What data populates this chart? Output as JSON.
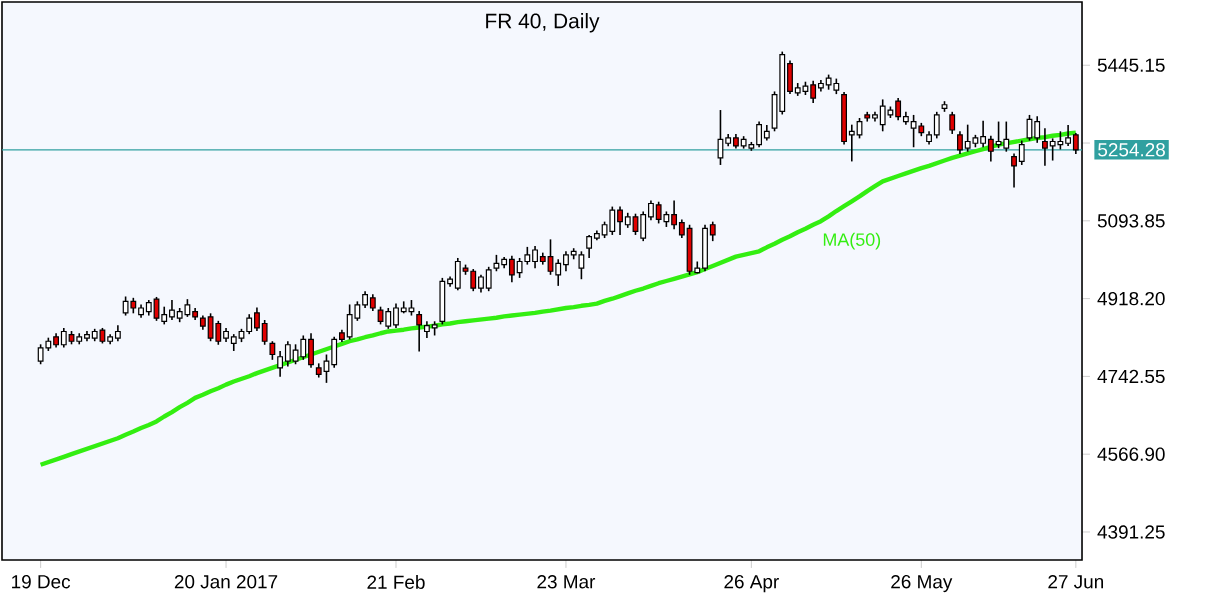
{
  "chart_data": {
    "type": "candlestick",
    "title": "FR 40, Daily",
    "colors": [
      "#ffffff",
      "#ffffff",
      "#e00000",
      "#ffffff",
      "#e00000",
      "#ffffff",
      "#ffffff",
      "#ffffff",
      "#e00000",
      "#ffffff",
      "#ffffff",
      "#ffffff",
      "#e00000",
      "#ffffff",
      "#ffffff",
      "#e00000",
      "#ffffff",
      "#ffffff",
      "#ffffff",
      "#ffffff",
      "#e00000",
      "#e00000",
      "#e00000",
      "#e00000",
      "#ffffff",
      "#ffffff",
      "#ffffff",
      "#ffffff",
      "#e00000",
      "#e00000",
      "#e00000",
      "#ffffff",
      "#ffffff",
      "#ffffff",
      "#ffffff",
      "#e00000",
      "#e00000",
      "#ffffff",
      "#ffffff",
      "#e00000",
      "#ffffff",
      "#ffffff",
      "#ffffff",
      "#e00000",
      "#e00000",
      "#ffffff",
      "#ffffff",
      "#ffffff",
      "#ffffff",
      "#e00000",
      "#ffffff",
      "#ffffff",
      "#ffffff",
      "#ffffff",
      "#ffffff",
      "#e00000",
      "#e00000",
      "#ffffff",
      "#ffffff",
      "#ffffff",
      "#ffffff",
      "#e00000",
      "#ffffff",
      "#ffffff",
      "#ffffff",
      "#e00000",
      "#e00000",
      "#ffffff",
      "#ffffff",
      "#ffffff",
      "#ffffff",
      "#ffffff",
      "#ffffff",
      "#ffffff",
      "#ffffff",
      "#e00000",
      "#ffffff",
      "#e00000",
      "#ffffff",
      "#ffffff",
      "#e00000",
      "#ffffff",
      "#e00000",
      "#e00000",
      "#e00000",
      "#ffffff",
      "#ffffff",
      "#e00000",
      "#ffffff",
      "#ffffff",
      "#e00000",
      "#ffffff",
      "#ffffff",
      "#ffffff",
      "#ffffff",
      "#ffffff",
      "#ffffff",
      "#e00000",
      "#ffffff",
      "#ffffff",
      "#e00000",
      "#ffffff",
      "#ffffff",
      "#ffffff",
      "#e00000",
      "#ffffff",
      "#ffffff",
      "#e00000",
      "#ffffff",
      "#ffffff",
      "#ffffff",
      "#e00000",
      "#ffffff",
      "#ffffff",
      "#e00000",
      "#ffffff",
      "#ffffff",
      "#ffffff",
      "#e00000",
      "#e00000",
      "#ffffff",
      "#ffffff",
      "#ffffff",
      "#e00000",
      "#ffffff",
      "#ffffff",
      "#e00000",
      "#ffffff",
      "#ffffff",
      "#ffffff",
      "#e00000",
      "#ffffff",
      "#ffffff",
      "#ffffff",
      "#e00000"
    ],
    "categories": [
      "19 Dec",
      null,
      null,
      null,
      null,
      null,
      null,
      null,
      null,
      null,
      null,
      null,
      null,
      null,
      null,
      null,
      null,
      null,
      null,
      null,
      null,
      null,
      null,
      null,
      "20 Jan 2017",
      null,
      null,
      null,
      null,
      null,
      null,
      null,
      null,
      null,
      null,
      null,
      null,
      null,
      null,
      null,
      null,
      null,
      null,
      null,
      null,
      null,
      "21 Feb",
      null,
      null,
      null,
      null,
      null,
      null,
      null,
      null,
      null,
      null,
      null,
      null,
      null,
      null,
      null,
      null,
      null,
      null,
      null,
      null,
      null,
      "23 Mar",
      null,
      null,
      null,
      null,
      null,
      null,
      null,
      null,
      null,
      null,
      null,
      null,
      null,
      null,
      null,
      null,
      null,
      null,
      null,
      null,
      null,
      null,
      null,
      "26 Apr",
      null,
      null,
      null,
      null,
      null,
      null,
      null,
      null,
      null,
      null,
      null,
      null,
      null,
      null,
      null,
      null,
      null,
      null,
      null,
      null,
      null,
      "26 May",
      null,
      null,
      null,
      null,
      null,
      null,
      null,
      null,
      null,
      null,
      null,
      null,
      null,
      null,
      null,
      null,
      null,
      null,
      null,
      "27 Jun"
    ],
    "ohlc": [
      [
        4777,
        4815,
        4770,
        4807
      ],
      [
        4807,
        4830,
        4800,
        4822
      ],
      [
        4832,
        4840,
        4808,
        4814
      ],
      [
        4814,
        4852,
        4808,
        4844
      ],
      [
        4837,
        4845,
        4815,
        4822
      ],
      [
        4822,
        4840,
        4815,
        4832
      ],
      [
        4829,
        4845,
        4822,
        4837
      ],
      [
        4829,
        4850,
        4822,
        4844
      ],
      [
        4847,
        4852,
        4817,
        4822
      ],
      [
        4822,
        4838,
        4815,
        4832
      ],
      [
        4829,
        4858,
        4822,
        4844
      ],
      [
        4886,
        4923,
        4880,
        4912
      ],
      [
        4912,
        4920,
        4885,
        4897
      ],
      [
        4882,
        4905,
        4875,
        4897
      ],
      [
        4889,
        4915,
        4880,
        4909
      ],
      [
        4917,
        4922,
        4868,
        4874
      ],
      [
        4867,
        4900,
        4860,
        4882
      ],
      [
        4877,
        4915,
        4870,
        4892
      ],
      [
        4874,
        4897,
        4865,
        4889
      ],
      [
        4882,
        4917,
        4877,
        4904
      ],
      [
        4889,
        4897,
        4870,
        4877
      ],
      [
        4874,
        4880,
        4848,
        4856
      ],
      [
        4877,
        4885,
        4822,
        4829
      ],
      [
        4862,
        4868,
        4814,
        4822
      ],
      [
        4829,
        4852,
        4820,
        4844
      ],
      [
        4817,
        4838,
        4800,
        4832
      ],
      [
        4829,
        4850,
        4820,
        4844
      ],
      [
        4844,
        4883,
        4838,
        4874
      ],
      [
        4886,
        4898,
        4845,
        4852
      ],
      [
        4862,
        4870,
        4814,
        4822
      ],
      [
        4817,
        4822,
        4780,
        4792
      ],
      [
        4762,
        4800,
        4742,
        4787
      ],
      [
        4777,
        4822,
        4765,
        4814
      ],
      [
        4777,
        4815,
        4770,
        4802
      ],
      [
        4787,
        4835,
        4780,
        4826
      ],
      [
        4826,
        4840,
        4762,
        4769
      ],
      [
        4762,
        4772,
        4740,
        4747
      ],
      [
        4754,
        4792,
        4728,
        4777
      ],
      [
        4769,
        4832,
        4762,
        4826
      ],
      [
        4841,
        4848,
        4820,
        4826
      ],
      [
        4832,
        4905,
        4826,
        4882
      ],
      [
        4874,
        4912,
        4868,
        4904
      ],
      [
        4904,
        4935,
        4897,
        4927
      ],
      [
        4920,
        4928,
        4890,
        4897
      ],
      [
        4892,
        4900,
        4860,
        4867
      ],
      [
        4856,
        4897,
        4850,
        4889
      ],
      [
        4859,
        4907,
        4852,
        4897
      ],
      [
        4889,
        4912,
        4885,
        4897
      ],
      [
        4889,
        4915,
        4880,
        4897
      ],
      [
        4882,
        4890,
        4799,
        4859
      ],
      [
        4844,
        4867,
        4829,
        4857
      ],
      [
        4852,
        4867,
        4835,
        4859
      ],
      [
        4867,
        4965,
        4860,
        4957
      ],
      [
        4952,
        4968,
        4945,
        4962
      ],
      [
        4942,
        5010,
        4937,
        5002
      ],
      [
        4987,
        4995,
        4972,
        4980
      ],
      [
        4980,
        4985,
        4935,
        4942
      ],
      [
        4942,
        4972,
        4932,
        4967
      ],
      [
        4942,
        4990,
        4935,
        4983
      ],
      [
        4987,
        5017,
        4980,
        4998
      ],
      [
        4995,
        5012,
        4987,
        5007
      ],
      [
        5007,
        5015,
        4955,
        4972
      ],
      [
        4977,
        5010,
        4965,
        5002
      ],
      [
        5002,
        5035,
        4995,
        5017
      ],
      [
        5002,
        5037,
        4987,
        5028
      ],
      [
        5013,
        5022,
        4995,
        5002
      ],
      [
        5013,
        5052,
        4972,
        4980
      ],
      [
        4972,
        5007,
        4947,
        4998
      ],
      [
        4995,
        5025,
        4980,
        5017
      ],
      [
        5017,
        5032,
        5007,
        5025
      ],
      [
        4987,
        5025,
        4962,
        5017
      ],
      [
        5032,
        5062,
        5010,
        5058
      ],
      [
        5055,
        5072,
        5050,
        5065
      ],
      [
        5062,
        5092,
        5055,
        5085
      ],
      [
        5070,
        5126,
        5062,
        5118
      ],
      [
        5118,
        5126,
        5062,
        5092
      ],
      [
        5085,
        5112,
        5078,
        5103
      ],
      [
        5103,
        5110,
        5062,
        5070
      ],
      [
        5055,
        5115,
        5048,
        5108
      ],
      [
        5103,
        5140,
        5095,
        5133
      ],
      [
        5130,
        5137,
        5088,
        5097
      ],
      [
        5092,
        5115,
        5080,
        5108
      ],
      [
        5108,
        5140,
        5075,
        5085
      ],
      [
        5090,
        5097,
        5055,
        5062
      ],
      [
        5077,
        5085,
        4972,
        4980
      ],
      [
        4977,
        5002,
        4975,
        4987
      ],
      [
        4987,
        5085,
        4980,
        5077
      ],
      [
        5085,
        5092,
        5048,
        5062
      ],
      [
        5236,
        5344,
        5220,
        5278
      ],
      [
        5269,
        5290,
        5262,
        5281
      ],
      [
        5281,
        5290,
        5257,
        5263
      ],
      [
        5263,
        5285,
        5257,
        5278
      ],
      [
        5258,
        5272,
        5252,
        5266
      ],
      [
        5266,
        5318,
        5260,
        5311
      ],
      [
        5281,
        5310,
        5275,
        5296
      ],
      [
        5303,
        5386,
        5296,
        5379
      ],
      [
        5341,
        5476,
        5334,
        5469
      ],
      [
        5449,
        5456,
        5380,
        5386
      ],
      [
        5383,
        5405,
        5376,
        5394
      ],
      [
        5386,
        5408,
        5378,
        5398
      ],
      [
        5401,
        5410,
        5360,
        5371
      ],
      [
        5394,
        5412,
        5386,
        5404
      ],
      [
        5401,
        5424,
        5390,
        5416
      ],
      [
        5389,
        5415,
        5380,
        5404
      ],
      [
        5379,
        5385,
        5266,
        5273
      ],
      [
        5288,
        5311,
        5228,
        5296
      ],
      [
        5288,
        5326,
        5280,
        5318
      ],
      [
        5333,
        5340,
        5318,
        5326
      ],
      [
        5326,
        5340,
        5318,
        5333
      ],
      [
        5311,
        5368,
        5296,
        5353
      ],
      [
        5333,
        5352,
        5326,
        5344
      ],
      [
        5364,
        5371,
        5321,
        5329
      ],
      [
        5318,
        5340,
        5311,
        5329
      ],
      [
        5303,
        5333,
        5260,
        5318
      ],
      [
        5308,
        5315,
        5285,
        5293
      ],
      [
        5273,
        5296,
        5266,
        5288
      ],
      [
        5288,
        5340,
        5280,
        5333
      ],
      [
        5348,
        5364,
        5340,
        5356
      ],
      [
        5333,
        5340,
        5290,
        5299
      ],
      [
        5288,
        5296,
        5245,
        5254
      ],
      [
        5258,
        5311,
        5250,
        5273
      ],
      [
        5269,
        5288,
        5260,
        5281
      ],
      [
        5269,
        5320,
        5260,
        5284
      ],
      [
        5278,
        5286,
        5228,
        5251
      ],
      [
        5266,
        5318,
        5258,
        5273
      ],
      [
        5258,
        5318,
        5250,
        5278
      ],
      [
        5239,
        5246,
        5169,
        5218
      ],
      [
        5228,
        5275,
        5220,
        5266
      ],
      [
        5281,
        5333,
        5275,
        5323
      ],
      [
        5281,
        5330,
        5270,
        5318
      ],
      [
        5273,
        5303,
        5218,
        5258
      ],
      [
        5263,
        5280,
        5230,
        5273
      ],
      [
        5266,
        5296,
        5255,
        5273
      ],
      [
        5269,
        5310,
        5263,
        5281
      ],
      [
        5288,
        5292,
        5245,
        5254.28
      ]
    ],
    "series": [
      {
        "type": "line",
        "name": "MA(50)",
        "color": "#33ee11",
        "values": [
          4543,
          4549,
          4555,
          4561,
          4567,
          4573,
          4579,
          4585,
          4591,
          4597,
          4603,
          4611,
          4618,
          4626,
          4633,
          4641,
          4652,
          4662,
          4673,
          4683,
          4694,
          4701,
          4709,
          4716,
          4724,
          4731,
          4737,
          4743,
          4750,
          4756,
          4762,
          4768,
          4774,
          4780,
          4786,
          4792,
          4798,
          4804,
          4810,
          4816,
          4822,
          4826,
          4831,
          4835,
          4840,
          4844,
          4846,
          4848,
          4851,
          4853,
          4855,
          4857,
          4860,
          4862,
          4865,
          4867,
          4869,
          4871,
          4873,
          4875,
          4878,
          4880,
          4882,
          4884,
          4886,
          4889,
          4891,
          4894,
          4897,
          4899,
          4902,
          4904,
          4907,
          4913,
          4918,
          4924,
          4930,
          4936,
          4941,
          4947,
          4953,
          4958,
          4963,
          4968,
          4973,
          4978,
          4985,
          4992,
          4999,
          5006,
          5013,
          5017,
          5021,
          5025,
          5034,
          5042,
          5051,
          5059,
          5068,
          5076,
          5085,
          5093,
          5104,
          5116,
          5127,
          5138,
          5149,
          5161,
          5172,
          5183,
          5189,
          5195,
          5201,
          5207,
          5213,
          5218,
          5224,
          5230,
          5236,
          5241,
          5246,
          5251,
          5256,
          5261,
          5266,
          5269,
          5272,
          5275,
          5278,
          5281,
          5283,
          5286,
          5288,
          5291,
          5293
        ]
      }
    ],
    "ref_lines": [
      {
        "axis": "y",
        "value": 5254.28,
        "label": "5254.28",
        "color": "#30a0a0"
      }
    ],
    "ylim": [
      4328,
      5588
    ],
    "yticks": [
      {
        "value": 4391.25,
        "label": "4391.25"
      },
      {
        "value": 4566.9,
        "label": "4566.90"
      },
      {
        "value": 4742.55,
        "label": "4742.55"
      },
      {
        "value": 4918.2,
        "label": "4918.20"
      },
      {
        "value": 5093.85,
        "label": "5093.85"
      },
      {
        "value": 5269.5,
        "label": null
      },
      {
        "value": 5445.15,
        "label": "5445.15"
      }
    ]
  }
}
